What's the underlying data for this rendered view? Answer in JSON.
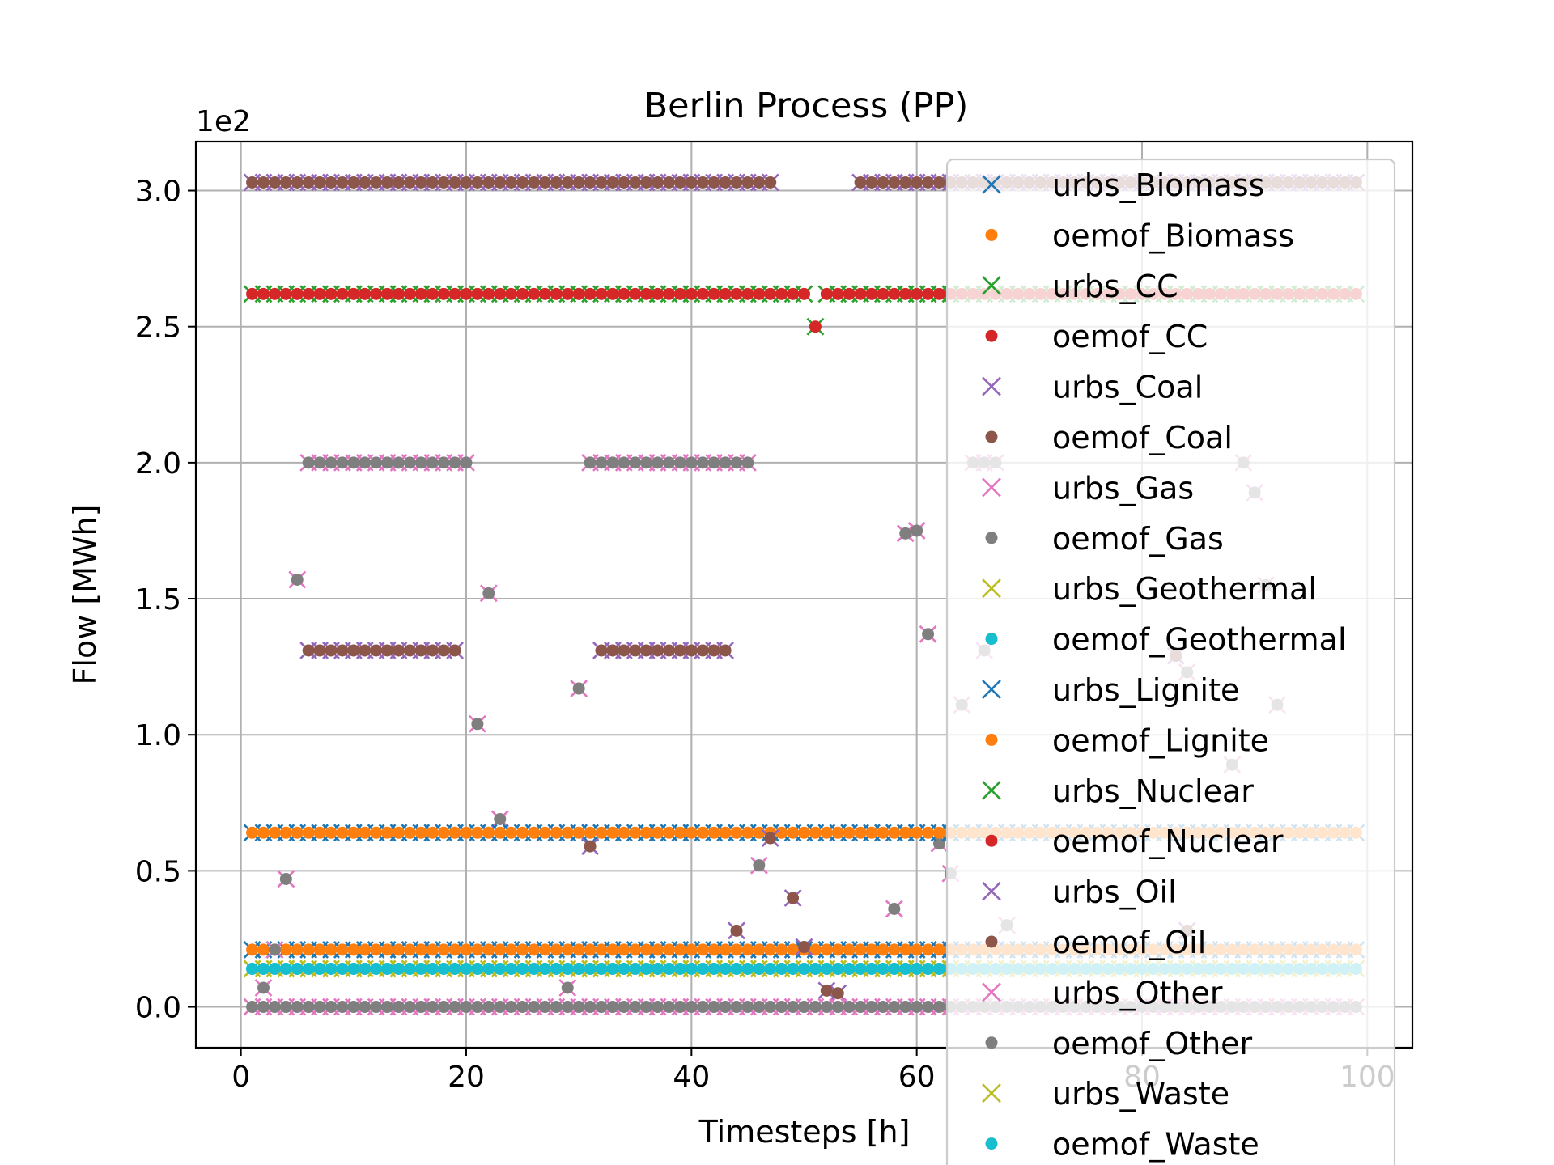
{
  "chart_data": {
    "type": "scatter",
    "title": "Berlin Process (PP)",
    "xlabel": "Timesteps [h]",
    "ylabel": "Flow [MWh]",
    "y_multiplier_label": "1e2",
    "xlim": [
      -4,
      104
    ],
    "ylim": [
      -0.15,
      3.18
    ],
    "x_ticks": [
      0,
      20,
      40,
      60,
      80,
      100
    ],
    "y_ticks": [
      0.0,
      0.5,
      1.0,
      1.5,
      2.0,
      2.5,
      3.0
    ],
    "x_tick_labels": [
      "0",
      "20",
      "40",
      "60",
      "80",
      "100"
    ],
    "y_tick_labels": [
      "0.0",
      "0.5",
      "1.0",
      "1.5",
      "2.0",
      "2.5",
      "3.0"
    ],
    "grid": true,
    "legend_position": "right",
    "series": [
      {
        "name": "urbs_Biomass",
        "marker": "x",
        "color": "#1f77b4",
        "runs": [
          {
            "from": 1,
            "to": 99,
            "y": 0.21
          }
        ],
        "points": []
      },
      {
        "name": "oemof_Biomass",
        "marker": "dot",
        "color": "#ff7f0e",
        "runs": [
          {
            "from": 1,
            "to": 99,
            "y": 0.21
          }
        ],
        "points": []
      },
      {
        "name": "urbs_CC",
        "marker": "x",
        "color": "#2ca02c",
        "runs": [
          {
            "from": 1,
            "to": 50,
            "y": 2.62
          },
          {
            "from": 52,
            "to": 99,
            "y": 2.62
          }
        ],
        "points": [
          [
            51,
            2.5
          ]
        ]
      },
      {
        "name": "oemof_CC",
        "marker": "dot",
        "color": "#d62728",
        "runs": [
          {
            "from": 1,
            "to": 50,
            "y": 2.62
          },
          {
            "from": 52,
            "to": 99,
            "y": 2.62
          }
        ],
        "points": [
          [
            51,
            2.5
          ]
        ]
      },
      {
        "name": "urbs_Coal",
        "marker": "x",
        "color": "#9467bd",
        "runs": [
          {
            "from": 1,
            "to": 47,
            "y": 3.03
          },
          {
            "from": 55,
            "to": 99,
            "y": 3.03
          }
        ],
        "points": []
      },
      {
        "name": "oemof_Coal",
        "marker": "dot",
        "color": "#8c564b",
        "runs": [
          {
            "from": 1,
            "to": 47,
            "y": 3.03
          },
          {
            "from": 55,
            "to": 99,
            "y": 3.03
          }
        ],
        "points": []
      },
      {
        "name": "urbs_Gas",
        "marker": "x",
        "color": "#e377c2",
        "runs": [
          {
            "from": 6,
            "to": 20,
            "y": 2.0
          },
          {
            "from": 31,
            "to": 45,
            "y": 2.0
          },
          {
            "from": 65,
            "to": 67,
            "y": 2.0
          }
        ],
        "points": [
          [
            5,
            1.57
          ],
          [
            22,
            1.52
          ],
          [
            21,
            1.04
          ],
          [
            30,
            1.17
          ],
          [
            4,
            0.47
          ],
          [
            23,
            0.69
          ],
          [
            46,
            0.52
          ],
          [
            58,
            0.36
          ],
          [
            59,
            1.74
          ],
          [
            60,
            1.75
          ],
          [
            61,
            1.37
          ],
          [
            62,
            0.6
          ],
          [
            63,
            0.49
          ],
          [
            64,
            1.11
          ],
          [
            66,
            1.31
          ],
          [
            68,
            0.3
          ],
          [
            89,
            2.0
          ],
          [
            90,
            1.89
          ],
          [
            91,
            1.55
          ],
          [
            92,
            1.11
          ],
          [
            88,
            0.89
          ],
          [
            84,
            1.23
          ],
          [
            3,
            0.21
          ],
          [
            2,
            0.07
          ],
          [
            29,
            0.07
          ]
        ]
      },
      {
        "name": "oemof_Gas",
        "marker": "dot",
        "color": "#7f7f7f",
        "runs": [
          {
            "from": 6,
            "to": 20,
            "y": 2.0
          },
          {
            "from": 31,
            "to": 45,
            "y": 2.0
          },
          {
            "from": 65,
            "to": 67,
            "y": 2.0
          }
        ],
        "points": [
          [
            5,
            1.57
          ],
          [
            22,
            1.52
          ],
          [
            21,
            1.04
          ],
          [
            30,
            1.17
          ],
          [
            4,
            0.47
          ],
          [
            23,
            0.69
          ],
          [
            46,
            0.52
          ],
          [
            58,
            0.36
          ],
          [
            59,
            1.74
          ],
          [
            60,
            1.75
          ],
          [
            61,
            1.37
          ],
          [
            62,
            0.6
          ],
          [
            63,
            0.49
          ],
          [
            64,
            1.11
          ],
          [
            66,
            1.31
          ],
          [
            68,
            0.3
          ],
          [
            89,
            2.0
          ],
          [
            90,
            1.89
          ],
          [
            91,
            1.55
          ],
          [
            92,
            1.11
          ],
          [
            88,
            0.89
          ],
          [
            84,
            1.23
          ],
          [
            3,
            0.21
          ],
          [
            2,
            0.07
          ],
          [
            29,
            0.07
          ]
        ]
      },
      {
        "name": "urbs_Geothermal",
        "marker": "x",
        "color": "#bcbd22",
        "runs": [
          {
            "from": 1,
            "to": 99,
            "y": 0.14
          }
        ],
        "points": []
      },
      {
        "name": "oemof_Geothermal",
        "marker": "dot",
        "color": "#17becf",
        "runs": [
          {
            "from": 1,
            "to": 99,
            "y": 0.14
          }
        ],
        "points": []
      },
      {
        "name": "urbs_Lignite",
        "marker": "x",
        "color": "#1f77b4",
        "runs": [
          {
            "from": 1,
            "to": 99,
            "y": 0.64
          }
        ],
        "points": []
      },
      {
        "name": "oemof_Lignite",
        "marker": "dot",
        "color": "#ff7f0e",
        "runs": [
          {
            "from": 1,
            "to": 99,
            "y": 0.64
          }
        ],
        "points": []
      },
      {
        "name": "urbs_Nuclear",
        "marker": "x",
        "color": "#2ca02c",
        "runs": [],
        "points": []
      },
      {
        "name": "oemof_Nuclear",
        "marker": "dot",
        "color": "#d62728",
        "runs": [],
        "points": []
      },
      {
        "name": "urbs_Oil",
        "marker": "x",
        "color": "#9467bd",
        "runs": [
          {
            "from": 6,
            "to": 19,
            "y": 1.31
          },
          {
            "from": 32,
            "to": 43,
            "y": 1.31
          }
        ],
        "points": [
          [
            31,
            0.59
          ],
          [
            44,
            0.28
          ],
          [
            49,
            0.4
          ],
          [
            50,
            0.22
          ],
          [
            52,
            0.06
          ],
          [
            53,
            0.05
          ],
          [
            47,
            0.62
          ],
          [
            84,
            0.28
          ],
          [
            83,
            1.29
          ]
        ]
      },
      {
        "name": "oemof_Oil",
        "marker": "dot",
        "color": "#8c564b",
        "runs": [
          {
            "from": 6,
            "to": 19,
            "y": 1.31
          },
          {
            "from": 32,
            "to": 43,
            "y": 1.31
          }
        ],
        "points": [
          [
            31,
            0.59
          ],
          [
            44,
            0.28
          ],
          [
            49,
            0.4
          ],
          [
            50,
            0.22
          ],
          [
            52,
            0.06
          ],
          [
            53,
            0.05
          ],
          [
            47,
            0.62
          ],
          [
            84,
            0.28
          ],
          [
            83,
            1.29
          ]
        ]
      },
      {
        "name": "urbs_Other",
        "marker": "x",
        "color": "#e377c2",
        "runs": [
          {
            "from": 1,
            "to": 99,
            "y": 0.0
          }
        ],
        "points": []
      },
      {
        "name": "oemof_Other",
        "marker": "dot",
        "color": "#7f7f7f",
        "runs": [
          {
            "from": 1,
            "to": 99,
            "y": 0.0
          }
        ],
        "points": []
      },
      {
        "name": "urbs_Waste",
        "marker": "x",
        "color": "#bcbd22",
        "runs": [
          {
            "from": 1,
            "to": 99,
            "y": 0.14
          }
        ],
        "points": []
      },
      {
        "name": "oemof_Waste",
        "marker": "dot",
        "color": "#17becf",
        "runs": [
          {
            "from": 1,
            "to": 99,
            "y": 0.14
          }
        ],
        "points": []
      }
    ]
  }
}
